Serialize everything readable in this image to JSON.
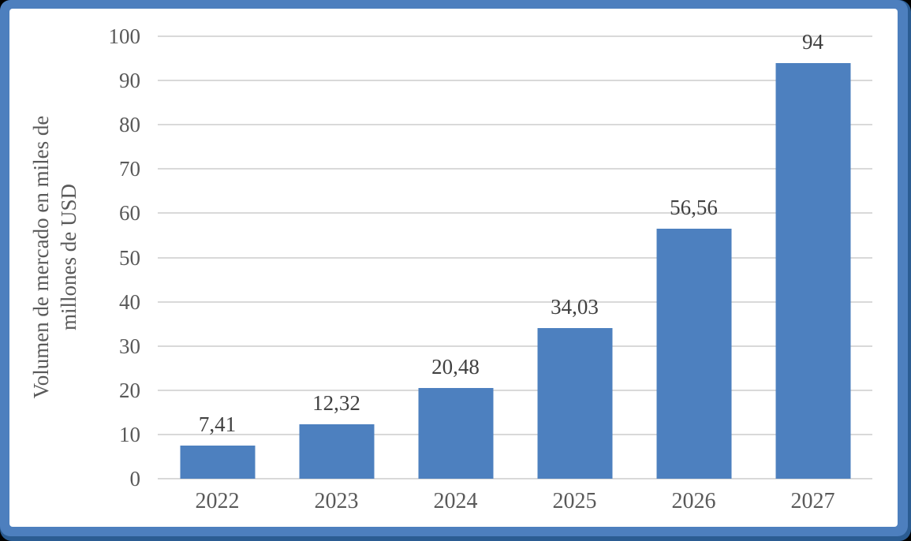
{
  "chart_data": {
    "type": "bar",
    "title": "",
    "xlabel": "",
    "ylabel": "Volumen de mercado en miles de millones de USD",
    "ylabel_lines": [
      "Volumen de mercado en miles de",
      "millones de USD"
    ],
    "categories": [
      "2022",
      "2023",
      "2024",
      "2025",
      "2026",
      "2027"
    ],
    "values": [
      7.41,
      12.32,
      20.48,
      34.03,
      56.56,
      94
    ],
    "value_labels": [
      "7,41",
      "12,32",
      "20,48",
      "34,03",
      "56,56",
      "94"
    ],
    "y_ticks": [
      0,
      10,
      20,
      30,
      40,
      50,
      60,
      70,
      80,
      90,
      100
    ],
    "ylim": [
      0,
      100
    ],
    "grid": "horizontal",
    "legend": "none",
    "colors": {
      "bar": "#4d80bf",
      "frame": "#4d7fbe",
      "frame_edge": "#2b5c92",
      "gridline": "#d9d9d9",
      "axis_text": "#595959",
      "data_label": "#404040",
      "plot_bg": "#ffffff",
      "page_bg": "#000000"
    }
  }
}
